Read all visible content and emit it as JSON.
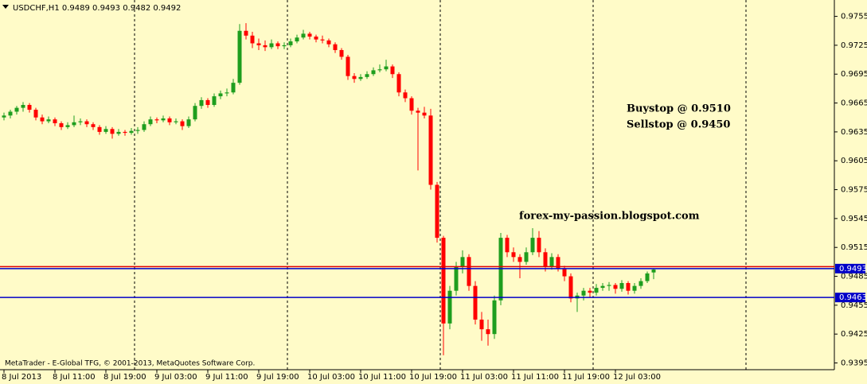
{
  "chart_data": {
    "type": "candlestick",
    "header": "USDCHF,H1  0.9489 0.9493 0.9482 0.9492",
    "annotations": [
      "Buystop @ 0.9510",
      "Sellstop @ 0.9450",
      "forex-my-passion.blogspot.com"
    ],
    "footer": "MetaTrader - E-Global TFG, © 2001-2013, MetaQuotes Software Corp.",
    "categories": [
      "8 Jul 2013",
      null,
      null,
      null,
      null,
      null,
      null,
      null,
      "8 Jul 11:00",
      null,
      null,
      null,
      null,
      null,
      null,
      null,
      "8 Jul 19:00",
      null,
      null,
      null,
      null,
      null,
      null,
      null,
      "9 Jul 03:00",
      null,
      null,
      null,
      null,
      null,
      null,
      null,
      "9 Jul 11:00",
      null,
      null,
      null,
      null,
      null,
      null,
      null,
      "9 Jul 19:00",
      null,
      null,
      null,
      null,
      null,
      null,
      null,
      "10 Jul 03:00",
      null,
      null,
      null,
      null,
      null,
      null,
      null,
      "10 Jul 11:00",
      null,
      null,
      null,
      null,
      null,
      null,
      null,
      "10 Jul 19:00",
      null,
      null,
      null,
      null,
      null,
      null,
      null,
      "11 Jul 03:00",
      null,
      null,
      null,
      null,
      null,
      null,
      null,
      "11 Jul 11:00",
      null,
      null,
      null,
      null,
      null,
      null,
      null,
      "11 Jul 19:00",
      null,
      null,
      null,
      null,
      null,
      null,
      null,
      "12 Jul 03:00",
      null,
      null,
      null,
      null,
      null,
      null
    ],
    "open": [
      0.965,
      0.9652,
      0.9656,
      0.966,
      0.9663,
      0.9658,
      0.965,
      0.9646,
      0.9648,
      0.9644,
      0.964,
      0.9642,
      0.9645,
      0.9646,
      0.9643,
      0.964,
      0.9635,
      0.9638,
      0.9633,
      0.9635,
      0.9634,
      0.9636,
      0.9637,
      0.9643,
      0.9648,
      0.9647,
      0.9649,
      0.9645,
      0.9646,
      0.9641,
      0.9648,
      0.9662,
      0.9668,
      0.9663,
      0.9672,
      0.9675,
      0.9676,
      0.9686,
      0.974,
      0.9735,
      0.9727,
      0.9725,
      0.9723,
      0.9727,
      0.9724,
      0.9725,
      0.9729,
      0.9733,
      0.9737,
      0.9734,
      0.9731,
      0.973,
      0.9726,
      0.972,
      0.9713,
      0.9693,
      0.969,
      0.9692,
      0.9695,
      0.9699,
      0.97,
      0.9703,
      0.9695,
      0.9676,
      0.967,
      0.9657,
      0.9655,
      0.9652,
      0.958,
      0.9525,
      0.9436,
      0.947,
      0.9495,
      0.9505,
      0.9475,
      0.944,
      0.943,
      0.9425,
      0.946,
      0.9525,
      0.951,
      0.9505,
      0.95,
      0.951,
      0.9525,
      0.951,
      0.9495,
      0.9505,
      0.9493,
      0.9485,
      0.9462,
      0.9465,
      0.947,
      0.9468,
      0.9473,
      0.9475,
      0.9476,
      0.9472,
      0.9478,
      0.947,
      0.9475,
      0.948,
      0.9489
    ],
    "high": [
      0.9655,
      0.9658,
      0.9662,
      0.9666,
      0.9665,
      0.966,
      0.9653,
      0.9651,
      0.965,
      0.9646,
      0.9645,
      0.9652,
      0.9649,
      0.9648,
      0.9645,
      0.9642,
      0.9641,
      0.964,
      0.9638,
      0.9637,
      0.9639,
      0.964,
      0.9646,
      0.9651,
      0.965,
      0.9652,
      0.9651,
      0.9649,
      0.9648,
      0.9651,
      0.9665,
      0.9671,
      0.967,
      0.9675,
      0.9678,
      0.968,
      0.969,
      0.9747,
      0.9748,
      0.9739,
      0.9732,
      0.973,
      0.9731,
      0.9729,
      0.9728,
      0.9732,
      0.9736,
      0.9741,
      0.9739,
      0.9736,
      0.9735,
      0.9732,
      0.9728,
      0.9722,
      0.9715,
      0.9696,
      0.9695,
      0.9698,
      0.9702,
      0.9705,
      0.971,
      0.9705,
      0.9697,
      0.9679,
      0.9672,
      0.966,
      0.9661,
      0.9659,
      0.9583,
      0.9527,
      0.9475,
      0.95,
      0.9512,
      0.9508,
      0.948,
      0.9448,
      0.944,
      0.9465,
      0.953,
      0.9528,
      0.9515,
      0.9508,
      0.9515,
      0.9535,
      0.9532,
      0.9514,
      0.9509,
      0.9508,
      0.9496,
      0.9488,
      0.9468,
      0.9473,
      0.9473,
      0.9477,
      0.9478,
      0.9479,
      0.9478,
      0.9481,
      0.948,
      0.9478,
      0.9483,
      0.949,
      0.9493
    ],
    "low": [
      0.9647,
      0.9649,
      0.9653,
      0.9656,
      0.9655,
      0.9647,
      0.9643,
      0.9644,
      0.9641,
      0.9637,
      0.9638,
      0.964,
      0.9642,
      0.964,
      0.9637,
      0.9632,
      0.9633,
      0.9628,
      0.9631,
      0.9631,
      0.9632,
      0.9633,
      0.9635,
      0.9641,
      0.9644,
      0.9645,
      0.9642,
      0.9643,
      0.9637,
      0.9639,
      0.9646,
      0.9659,
      0.966,
      0.9661,
      0.9669,
      0.9672,
      0.9674,
      0.9684,
      0.9731,
      0.9722,
      0.972,
      0.9719,
      0.9721,
      0.9721,
      0.9721,
      0.9723,
      0.9727,
      0.9731,
      0.9731,
      0.9728,
      0.9727,
      0.9723,
      0.9717,
      0.971,
      0.9689,
      0.9686,
      0.9688,
      0.969,
      0.9693,
      0.9697,
      0.9698,
      0.9691,
      0.9672,
      0.9666,
      0.9653,
      0.9595,
      0.9649,
      0.9575,
      0.952,
      0.9403,
      0.943,
      0.9465,
      0.9488,
      0.947,
      0.9435,
      0.9418,
      0.9413,
      0.942,
      0.9455,
      0.9505,
      0.95,
      0.9483,
      0.9497,
      0.9507,
      0.9505,
      0.949,
      0.9492,
      0.949,
      0.948,
      0.9458,
      0.9448,
      0.946,
      0.9463,
      0.9465,
      0.947,
      0.947,
      0.9467,
      0.9469,
      0.9466,
      0.9467,
      0.9472,
      0.9478,
      0.9482
    ],
    "close": [
      0.9652,
      0.9656,
      0.966,
      0.9663,
      0.9658,
      0.965,
      0.9646,
      0.9648,
      0.9644,
      0.964,
      0.9642,
      0.9645,
      0.9646,
      0.9643,
      0.964,
      0.9635,
      0.9638,
      0.9633,
      0.9635,
      0.9634,
      0.9636,
      0.9637,
      0.9643,
      0.9648,
      0.9647,
      0.9649,
      0.9645,
      0.9646,
      0.9641,
      0.9648,
      0.9662,
      0.9668,
      0.9663,
      0.9672,
      0.9675,
      0.9676,
      0.9686,
      0.974,
      0.9735,
      0.9727,
      0.9725,
      0.9723,
      0.9727,
      0.9724,
      0.9725,
      0.9729,
      0.9733,
      0.9737,
      0.9734,
      0.9731,
      0.973,
      0.9726,
      0.972,
      0.9713,
      0.9693,
      0.969,
      0.9692,
      0.9695,
      0.9699,
      0.97,
      0.9703,
      0.9695,
      0.9676,
      0.967,
      0.9657,
      0.9655,
      0.9652,
      0.958,
      0.9525,
      0.9436,
      0.947,
      0.9495,
      0.9505,
      0.9475,
      0.944,
      0.943,
      0.9425,
      0.946,
      0.9525,
      0.951,
      0.9505,
      0.95,
      0.951,
      0.9525,
      0.951,
      0.9495,
      0.9505,
      0.9493,
      0.9485,
      0.9462,
      0.9465,
      0.947,
      0.9468,
      0.9473,
      0.9475,
      0.9476,
      0.9472,
      0.9478,
      0.947,
      0.9475,
      0.948,
      0.9488,
      0.9492
    ],
    "up_color": "#1e9e1e",
    "down_color": "#ff0000",
    "hlines": [
      {
        "value": 0.9495,
        "color": "#e00000",
        "tagged": false
      },
      {
        "value": 0.9493,
        "color": "#0000c8",
        "tagged": true
      },
      {
        "value": 0.9463,
        "color": "#0000c8",
        "tagged": true
      }
    ],
    "ylim": [
      0.9388,
      0.9772
    ],
    "yticks": [
      0.9755,
      0.9725,
      0.9695,
      0.9665,
      0.9635,
      0.9605,
      0.9575,
      0.9545,
      0.9515,
      0.9485,
      0.9455,
      0.9425,
      0.9395
    ]
  }
}
